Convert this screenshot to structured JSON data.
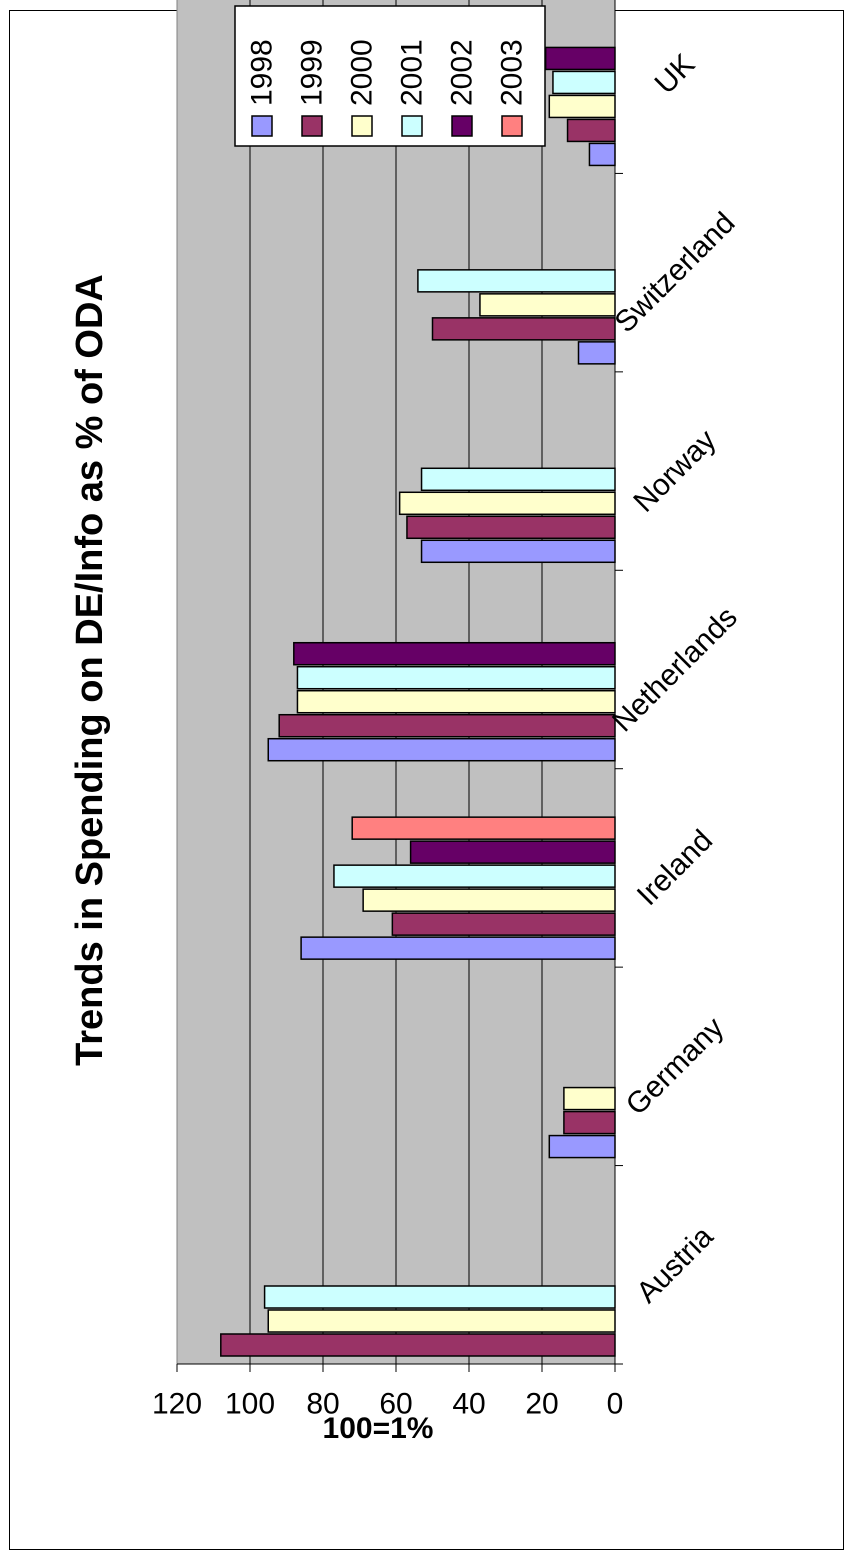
{
  "chart_data": {
    "type": "bar",
    "title": "Trends in Spending on DE/Info as % of ODA",
    "ylabel": "100=1%",
    "xlabel": "",
    "ylim": [
      0,
      120
    ],
    "yticks": [
      "0",
      "20",
      "40",
      "60",
      "80",
      "100",
      "120"
    ],
    "categories": [
      "Austria",
      "Germany",
      "Ireland",
      "Netherlands",
      "Norway",
      "Switzerland",
      "UK"
    ],
    "series": [
      {
        "name": "1998",
        "color": "#9999ff",
        "values": [
          null,
          18,
          86,
          95,
          53,
          10,
          7
        ]
      },
      {
        "name": "1999",
        "color": "#993366",
        "values": [
          108,
          14,
          61,
          92,
          57,
          50,
          13
        ]
      },
      {
        "name": "2000",
        "color": "#ffffcc",
        "values": [
          95,
          14,
          69,
          87,
          59,
          37,
          18
        ]
      },
      {
        "name": "2001",
        "color": "#ccffff",
        "values": [
          96,
          null,
          77,
          87,
          53,
          54,
          17
        ]
      },
      {
        "name": "2002",
        "color": "#660066",
        "values": [
          null,
          null,
          56,
          88,
          null,
          null,
          19
        ]
      },
      {
        "name": "2003",
        "color": "#ff8080",
        "values": [
          null,
          null,
          72,
          null,
          null,
          null,
          null
        ]
      }
    ],
    "grid": true,
    "legend_position": "top"
  }
}
